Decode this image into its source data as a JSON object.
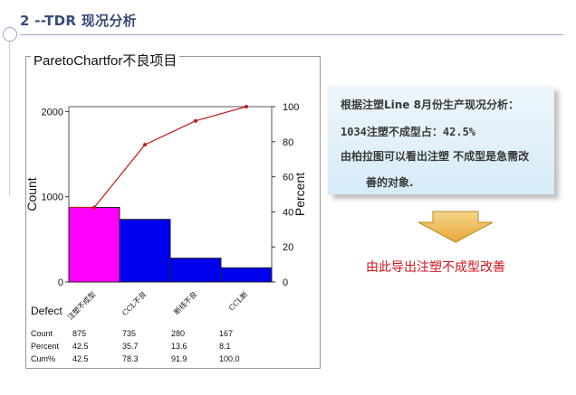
{
  "slide": {
    "title": "2 --TDR 现况分析"
  },
  "pareto": {
    "title": "ParetoChartfor不良项目",
    "colors": {
      "bar_primary": "#ff00ff",
      "bar_secondary": "#0000ee",
      "cum_line": "#c01818"
    },
    "table_labels": {
      "defect": "Defect",
      "count": "Count",
      "percent": "Percent",
      "cum": "Cum%"
    }
  },
  "chart_data": {
    "type": "bar",
    "categories": [
      "注塑不成型",
      "CCL不良",
      "断线不良",
      "CCL断"
    ],
    "values": [
      875,
      735,
      280,
      167
    ],
    "percent": [
      "42.5",
      "35.7",
      "13.6",
      "8.1"
    ],
    "cum_percent": [
      "42.5",
      "78.3",
      "91.9",
      "100.0"
    ],
    "counts_text": [
      "875",
      "735",
      "280",
      "167"
    ],
    "cum_values": [
      42.5,
      78.3,
      91.9,
      100.0
    ],
    "ylabel": "Count",
    "y2label": "Percent",
    "ylim": [
      0,
      2057
    ],
    "y2lim": [
      0,
      100
    ],
    "yticks": [
      "0",
      "1000",
      "2000"
    ],
    "yticks_values": [
      0,
      1000,
      2000
    ],
    "y2ticks": [
      "0",
      "20",
      "40",
      "60",
      "80",
      "100"
    ],
    "y2ticks_values": [
      0,
      20,
      40,
      60,
      80,
      100
    ]
  },
  "analysis": {
    "line1": "根据注塑Line 8月份生产现况分析：",
    "line2": "1034注塑不成型占：42.5%",
    "line3": "由柏拉图可以看出注塑 不成型是急需改",
    "line4": "善的对象."
  },
  "conclusion": "由此导出注塑不成型改善"
}
